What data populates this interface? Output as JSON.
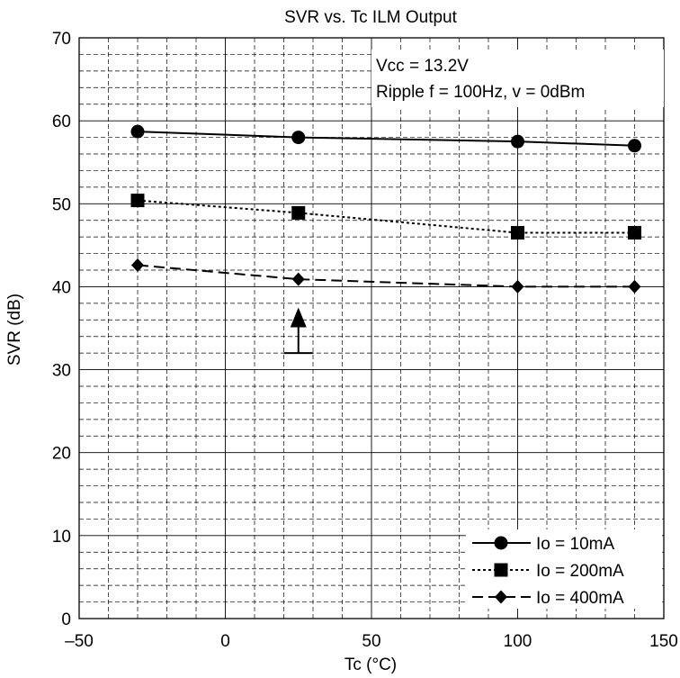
{
  "chart_data": {
    "type": "line",
    "title": "SVR vs. Tc   ILM Output",
    "xlabel": "Tc  (°C)",
    "ylabel": "SVR  (dB)",
    "xlim": [
      -50,
      150
    ],
    "ylim": [
      0,
      70
    ],
    "x_ticks": [
      -50,
      0,
      50,
      100,
      150
    ],
    "y_ticks": [
      0,
      10,
      20,
      30,
      40,
      50,
      60,
      70
    ],
    "grid": {
      "major": true,
      "minor_dashed": true
    },
    "legend_position": "bottom-right",
    "annotations": [
      "Vcc = 13.2V",
      "Ripple  f = 100Hz, v = 0dBm"
    ],
    "series": [
      {
        "name": "Io = 10mA",
        "marker": "circle",
        "line_style": "solid",
        "x": [
          -30,
          25,
          100,
          140
        ],
        "values": [
          58.7,
          58.0,
          57.5,
          57.0
        ]
      },
      {
        "name": "Io = 200mA",
        "marker": "square",
        "line_style": "dotted",
        "x": [
          -30,
          25,
          100,
          140
        ],
        "values": [
          50.4,
          48.9,
          46.5,
          46.5
        ]
      },
      {
        "name": "Io = 400mA",
        "marker": "diamond",
        "line_style": "dashed",
        "x": [
          -30,
          25,
          100,
          140
        ],
        "values": [
          42.6,
          40.9,
          40.0,
          40.0
        ]
      }
    ],
    "arrow_marker": {
      "x": 25,
      "y_base": 32,
      "y_tip": 37.5
    }
  }
}
